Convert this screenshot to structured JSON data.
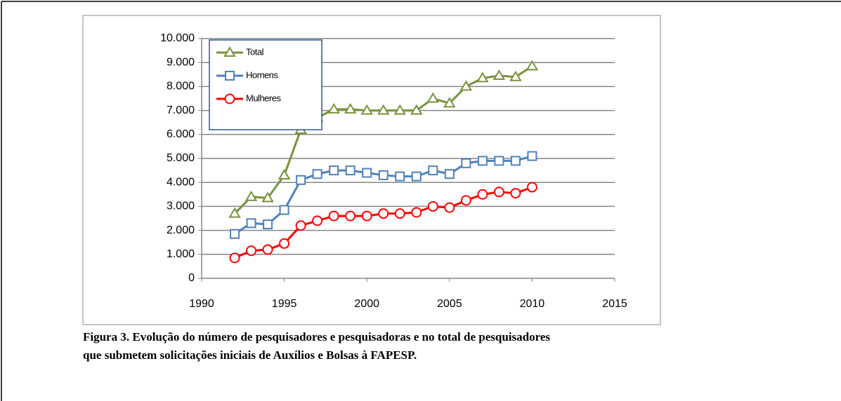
{
  "chart_data": {
    "type": "line",
    "x": [
      1992,
      1993,
      1994,
      1995,
      1996,
      1997,
      1998,
      1999,
      2000,
      2001,
      2002,
      2003,
      2004,
      2005,
      2006,
      2007,
      2008,
      2009,
      2010
    ],
    "series": [
      {
        "name": "Total",
        "color": "#77933c",
        "marker": "triangle",
        "values": [
          2700,
          3400,
          3350,
          4300,
          6200,
          6700,
          7050,
          7050,
          7000,
          7000,
          7000,
          7000,
          7500,
          7300,
          8000,
          8350,
          8450,
          8400,
          8850
        ]
      },
      {
        "name": "Homens",
        "color": "#4f81bd",
        "marker": "square",
        "values": [
          1850,
          2300,
          2250,
          2850,
          4100,
          4350,
          4500,
          4500,
          4400,
          4300,
          4250,
          4250,
          4500,
          4350,
          4800,
          4900,
          4900,
          4900,
          5100
        ]
      },
      {
        "name": "Mulheres",
        "color": "#ff0000",
        "marker": "circle",
        "values": [
          850,
          1150,
          1200,
          1450,
          2200,
          2400,
          2600,
          2600,
          2600,
          2700,
          2700,
          2750,
          3000,
          2950,
          3250,
          3500,
          3600,
          3550,
          3800
        ]
      }
    ],
    "xlim": [
      1990,
      2015
    ],
    "xticks": [
      1990,
      1995,
      2000,
      2005,
      2010,
      2015
    ],
    "ylim": [
      0,
      10000
    ],
    "yticks": [
      0,
      {
        "value": 1000,
        "label": "1.000"
      },
      {
        "value": 2000,
        "label": "2.000"
      },
      {
        "value": 3000,
        "label": "3.000"
      },
      {
        "value": 4000,
        "label": "4.000"
      },
      {
        "value": 5000,
        "label": "5.000"
      },
      {
        "value": 6000,
        "label": "6.000"
      },
      {
        "value": 7000,
        "label": "7.000"
      },
      {
        "value": 8000,
        "label": "8.000"
      },
      {
        "value": 9000,
        "label": "9.000"
      },
      {
        "value": 10000,
        "label": "10.000"
      }
    ],
    "grid": true,
    "legend": "top-left",
    "caption": [
      "Figura 3. Evolução do número de pesquisadores e pesquisadoras e no total de pesquisadores",
      "que submetem solicitações iniciais de Auxílios e Bolsas à FAPESP."
    ]
  }
}
